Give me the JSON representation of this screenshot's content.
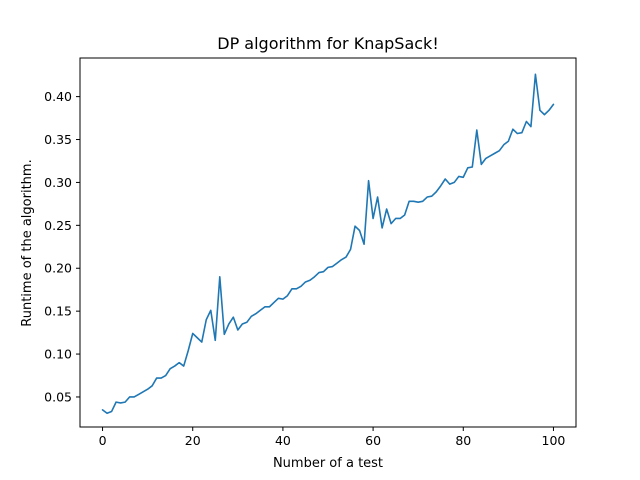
{
  "chart_data": {
    "type": "line",
    "title": "DP algorithm for KnapSack!",
    "xlabel": "Number of a test",
    "ylabel": "Runtime of the algorithm.",
    "xlim": [
      -5,
      105
    ],
    "ylim": [
      0.015,
      0.445
    ],
    "xticks": [
      0,
      20,
      40,
      60,
      80,
      100
    ],
    "yticks": [
      0.05,
      0.1,
      0.15,
      0.2,
      0.25,
      0.3,
      0.35,
      0.4
    ],
    "grid": false,
    "legend": "none",
    "line_color": "#1f77b4",
    "series": [
      {
        "x": [
          0,
          1,
          2,
          3,
          4,
          5,
          6,
          7,
          8,
          9,
          10,
          11,
          12,
          13,
          14,
          15,
          16,
          17,
          18,
          19,
          20,
          21,
          22,
          23,
          24,
          25,
          26,
          27,
          28,
          29,
          30,
          31,
          32,
          33,
          34,
          35,
          36,
          37,
          38,
          39,
          40,
          41,
          42,
          43,
          44,
          45,
          46,
          47,
          48,
          49,
          50,
          51,
          52,
          53,
          54,
          55,
          56,
          57,
          58,
          59,
          60,
          61,
          62,
          63,
          64,
          65,
          66,
          67,
          68,
          69,
          70,
          71,
          72,
          73,
          74,
          75,
          76,
          77,
          78,
          79,
          80,
          81,
          82,
          83,
          84,
          85,
          86,
          87,
          88,
          89,
          90,
          91,
          92,
          93,
          94,
          95,
          96,
          97,
          98,
          99,
          100
        ],
        "values": [
          0.035,
          0.031,
          0.033,
          0.044,
          0.043,
          0.044,
          0.05,
          0.05,
          0.053,
          0.056,
          0.059,
          0.063,
          0.072,
          0.072,
          0.075,
          0.083,
          0.086,
          0.09,
          0.086,
          0.104,
          0.124,
          0.119,
          0.114,
          0.14,
          0.151,
          0.116,
          0.19,
          0.123,
          0.135,
          0.143,
          0.128,
          0.135,
          0.137,
          0.144,
          0.147,
          0.151,
          0.155,
          0.155,
          0.16,
          0.165,
          0.164,
          0.168,
          0.176,
          0.176,
          0.179,
          0.184,
          0.186,
          0.19,
          0.195,
          0.196,
          0.201,
          0.202,
          0.206,
          0.21,
          0.213,
          0.222,
          0.249,
          0.244,
          0.228,
          0.302,
          0.258,
          0.283,
          0.247,
          0.269,
          0.252,
          0.258,
          0.258,
          0.262,
          0.278,
          0.278,
          0.277,
          0.278,
          0.283,
          0.284,
          0.289,
          0.296,
          0.304,
          0.298,
          0.3,
          0.307,
          0.306,
          0.317,
          0.318,
          0.361,
          0.321,
          0.328,
          0.331,
          0.334,
          0.337,
          0.344,
          0.348,
          0.362,
          0.357,
          0.358,
          0.371,
          0.365,
          0.426,
          0.384,
          0.379,
          0.384,
          0.391
        ]
      }
    ]
  }
}
